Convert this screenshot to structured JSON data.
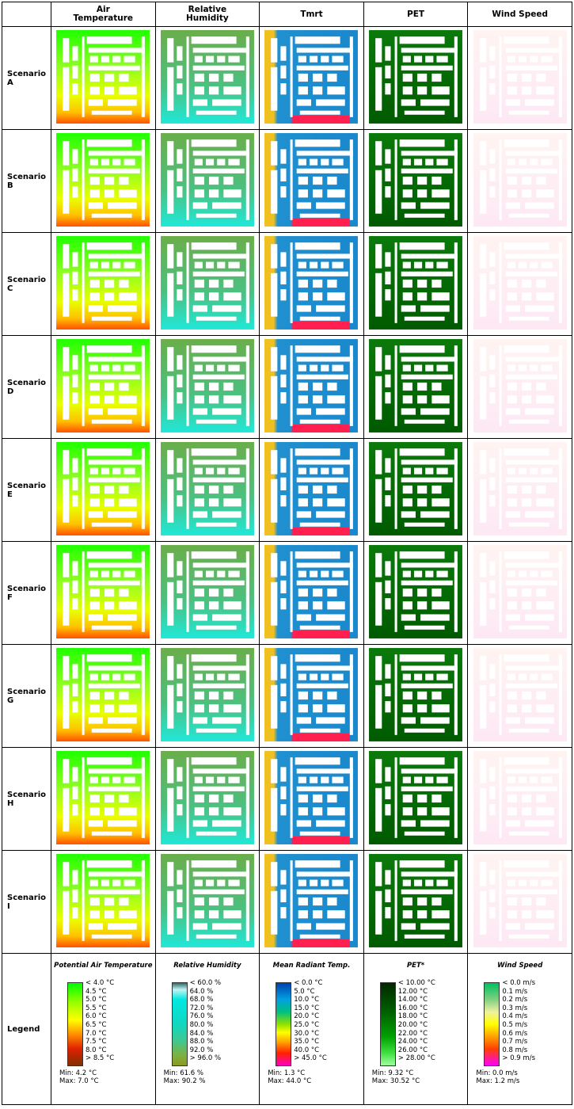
{
  "header": {
    "corner": "",
    "columns": [
      "Air Temperature",
      "Relative Humidity",
      "Tmrt",
      "PET",
      "Wind Speed"
    ]
  },
  "rows": [
    {
      "label": "Scenario A"
    },
    {
      "label": "Scenario B"
    },
    {
      "label": "Scenario C"
    },
    {
      "label": "Scenario D"
    },
    {
      "label": "Scenario E"
    },
    {
      "label": "Scenario F"
    },
    {
      "label": "Scenario G"
    },
    {
      "label": "Scenario H"
    },
    {
      "label": "Scenario I"
    }
  ],
  "legend": {
    "label": "Legend",
    "items": [
      {
        "title": "Potential Air Temperature",
        "labels": [
          "< 4.0 °C",
          "4.5 °C",
          "5.0 °C",
          "5.5 °C",
          "6.0 °C",
          "6.5 °C",
          "7.0 °C",
          "7.5 °C",
          "8.0 °C",
          "> 8.5 °C"
        ],
        "min": "Min: 4.2 °C",
        "max": "Max: 7.0 °C"
      },
      {
        "title": "Relative Humidity",
        "labels": [
          "< 60.0 %",
          "64.0 %",
          "68.0 %",
          "72.0 %",
          "76.0 %",
          "80.0 %",
          "84.0 %",
          "88.0 %",
          "92.0 %",
          "> 96.0 %"
        ],
        "min": "Min: 61.6 %",
        "max": "Max: 90.2 %"
      },
      {
        "title": "Mean Radiant Temp.",
        "labels": [
          "< 0.0 °C",
          "5.0 °C",
          "10.0 °C",
          "15.0 °C",
          "20.0 °C",
          "25.0 °C",
          "30.0 °C",
          "35.0 °C",
          "40.0 °C",
          "> 45.0 °C"
        ],
        "min": "Min: 1.3 °C",
        "max": "Max: 44.0 °C"
      },
      {
        "title": "PET*",
        "labels": [
          "< 10.00 °C",
          "12.00 °C",
          "14.00 °C",
          "16.00 °C",
          "18.00 °C",
          "20.00 °C",
          "22.00 °C",
          "24.00 °C",
          "26.00 °C",
          "> 28.00 °C"
        ],
        "min": "Min: 9.32 °C",
        "max": "Max: 30.52 °C"
      },
      {
        "title": "Wind Speed",
        "labels": [
          "< 0.0 m/s",
          "0.1 m/s",
          "0.2 m/s",
          "0.3 m/s",
          "0.4 m/s",
          "0.5 m/s",
          "0.6 m/s",
          "0.7 m/s",
          "0.8 m/s",
          "> 0.9 m/s"
        ],
        "min": "Min: 0.0 m/s",
        "max": "Max: 1.2 m/s"
      }
    ]
  }
}
